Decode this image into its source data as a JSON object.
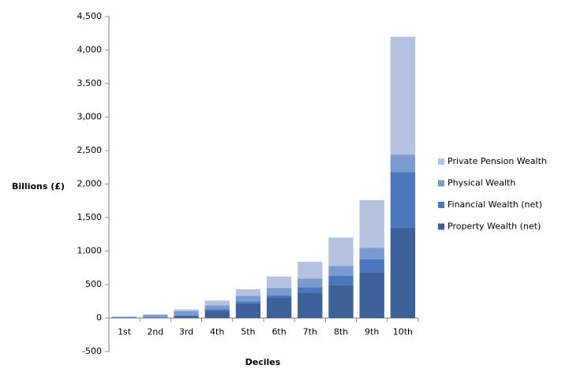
{
  "chart_data": {
    "type": "stacked-bar",
    "y_label": "Billions (£)",
    "x_label": "Deciles",
    "categories": [
      "1st",
      "2nd",
      "3rd",
      "4th",
      "5th",
      "6th",
      "7th",
      "8th",
      "9th",
      "10th"
    ],
    "series": [
      {
        "name": "Property Wealth (net)",
        "color": "#3c6098",
        "values": [
          0,
          5,
          30,
          110,
          220,
          300,
          380,
          490,
          680,
          1350
        ]
      },
      {
        "name": "Financial Wealth (net)",
        "color": "#4a77bd",
        "values": [
          5,
          5,
          10,
          20,
          30,
          40,
          80,
          140,
          200,
          830
        ]
      },
      {
        "name": "Physical Wealth",
        "color": "#7b9bd0",
        "values": [
          15,
          40,
          60,
          60,
          80,
          110,
          130,
          150,
          170,
          260
        ]
      },
      {
        "name": "Private Pension Wealth",
        "color": "#b4c2e0",
        "values": [
          5,
          5,
          30,
          70,
          100,
          170,
          250,
          420,
          710,
          1760
        ]
      }
    ],
    "ylim": [
      -500,
      4500
    ],
    "yticks": [
      -500,
      0,
      500,
      {
        "value": 1000,
        "label": "1,000"
      },
      {
        "value": 1500,
        "label": "1,500"
      },
      {
        "value": 2000,
        "label": "2,000"
      },
      {
        "value": 2500,
        "label": "2,500"
      },
      {
        "value": 3000,
        "label": "3,000"
      },
      {
        "value": 3500,
        "label": "3,500"
      },
      {
        "value": 4000,
        "label": "4,000"
      },
      {
        "value": 4500,
        "label": "4,500"
      }
    ],
    "grid": false,
    "legend": "right"
  }
}
